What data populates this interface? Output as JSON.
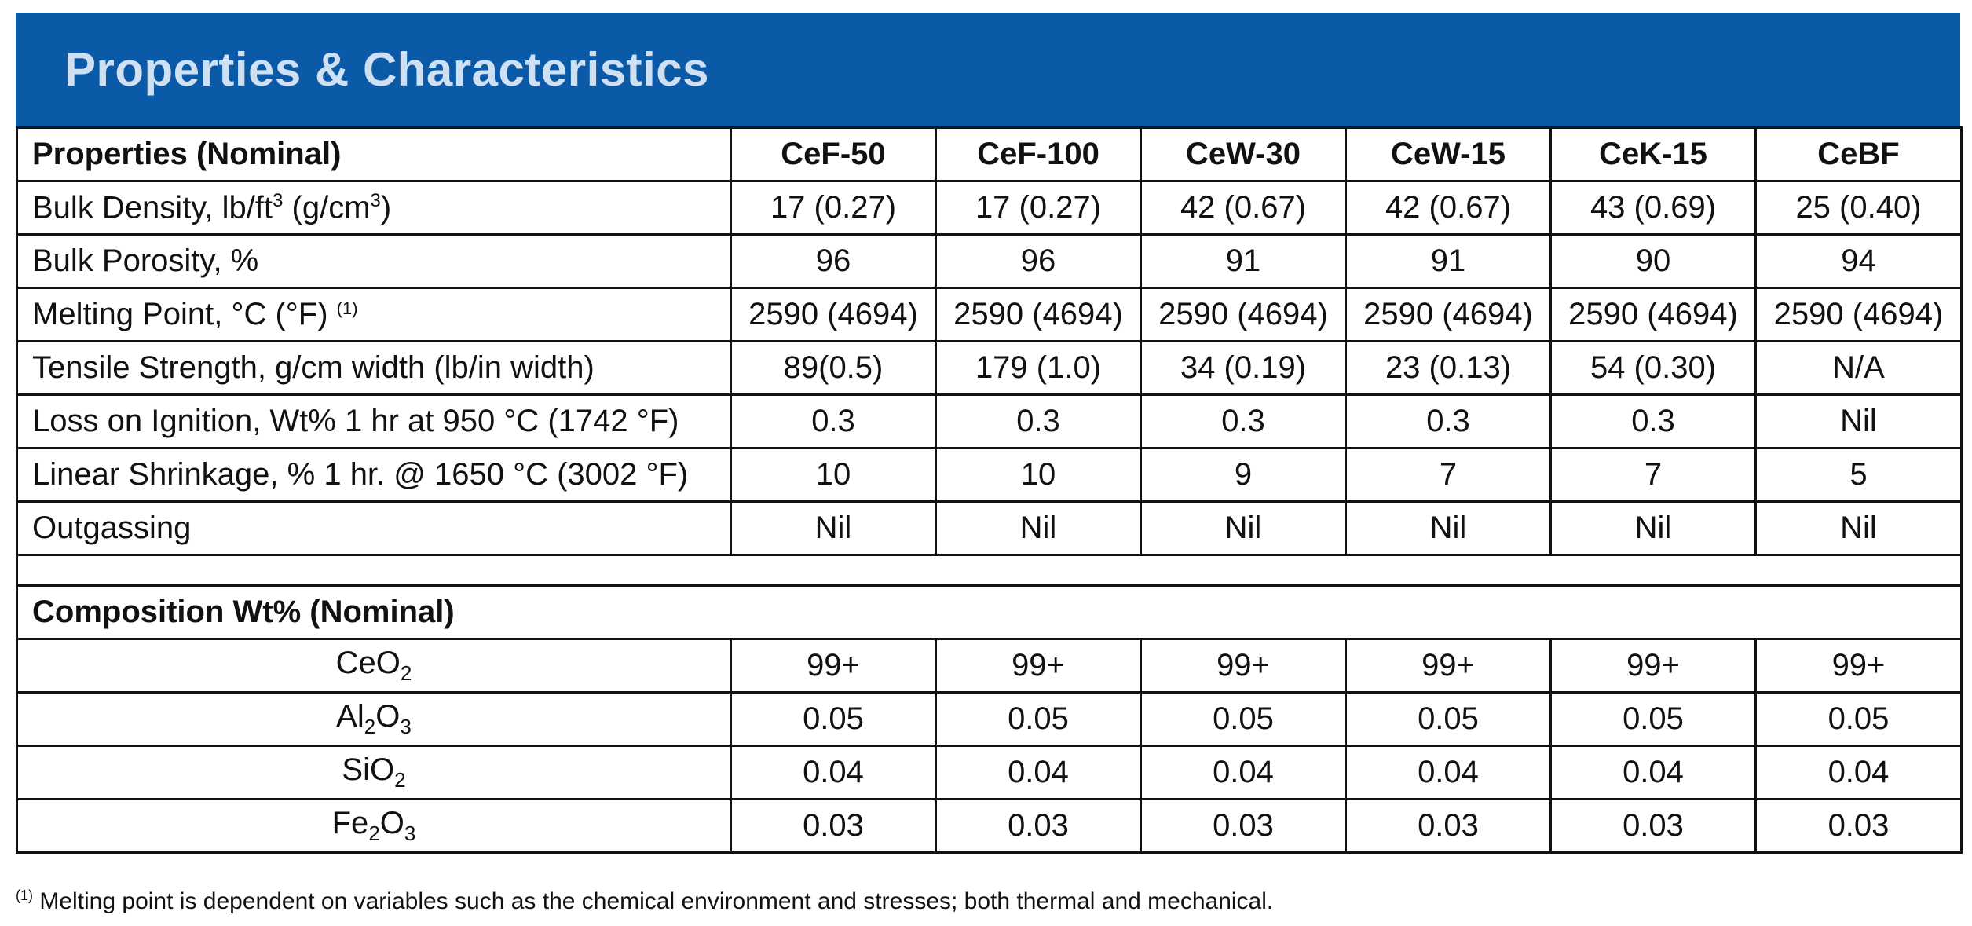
{
  "banner": {
    "title": "Properties & Characteristics",
    "color": "#0b5aa8"
  },
  "table": {
    "header_label": "Properties (Nominal)",
    "columns": [
      "CeF-50",
      "CeF-100",
      "CeW-30",
      "CeW-15",
      "CeK-15",
      "CeBF"
    ],
    "properties": [
      {
        "label_pre": "Bulk Density, lb/ft",
        "label_sup1": "3",
        "label_mid": " (g/cm",
        "label_sup2": "3",
        "label_post": ")",
        "values": [
          "17 (0.27)",
          "17 (0.27)",
          "42 (0.67)",
          "42 (0.67)",
          "43 (0.69)",
          "25 (0.40)"
        ]
      },
      {
        "label": "Bulk Porosity, %",
        "values": [
          "96",
          "96",
          "91",
          "91",
          "90",
          "94"
        ]
      },
      {
        "label": "Melting Point, °C (°F)",
        "ref": "(1)",
        "values": [
          "2590 (4694)",
          "2590 (4694)",
          "2590 (4694)",
          "2590 (4694)",
          "2590 (4694)",
          "2590 (4694)"
        ]
      },
      {
        "label": "Tensile Strength, g/cm width (lb/in width)",
        "values": [
          "89(0.5)",
          "179 (1.0)",
          "34 (0.19)",
          "23 (0.13)",
          "54 (0.30)",
          "N/A"
        ]
      },
      {
        "label": "Loss on Ignition, Wt% 1 hr at 950 °C (1742 °F)",
        "values": [
          "0.3",
          "0.3",
          "0.3",
          "0.3",
          "0.3",
          "Nil"
        ]
      },
      {
        "label": "Linear Shrinkage, % 1 hr. @ 1650 °C (3002 °F)",
        "values": [
          "10",
          "10",
          "9",
          "7",
          "7",
          "5"
        ]
      },
      {
        "label": "Outgassing",
        "values": [
          "Nil",
          "Nil",
          "Nil",
          "Nil",
          "Nil",
          "Nil"
        ]
      }
    ],
    "composition_header": "Composition Wt% (Nominal)",
    "composition": [
      {
        "parts": [
          "CeO",
          "2",
          ""
        ],
        "values": [
          "99+",
          "99+",
          "99+",
          "99+",
          "99+",
          "99+"
        ]
      },
      {
        "parts": [
          "Al",
          "2",
          "O",
          "3"
        ],
        "values": [
          "0.05",
          "0.05",
          "0.05",
          "0.05",
          "0.05",
          "0.05"
        ]
      },
      {
        "parts": [
          "SiO",
          "2",
          ""
        ],
        "values": [
          "0.04",
          "0.04",
          "0.04",
          "0.04",
          "0.04",
          "0.04"
        ]
      },
      {
        "parts": [
          "Fe",
          "2",
          "O",
          "3"
        ],
        "values": [
          "0.03",
          "0.03",
          "0.03",
          "0.03",
          "0.03",
          "0.03"
        ]
      }
    ]
  },
  "footnote": {
    "ref": "(1)",
    "text": "Melting point is dependent on variables such as the chemical environment and stresses; both thermal and mechanical."
  }
}
